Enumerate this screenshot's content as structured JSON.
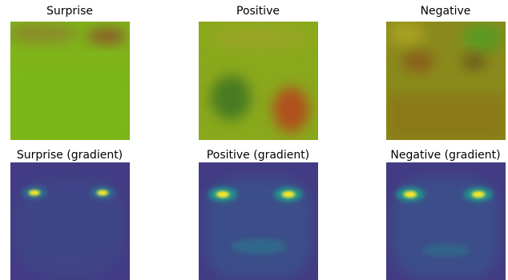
{
  "panels": [
    {
      "title": "Surprise"
    },
    {
      "title": "Positive"
    },
    {
      "title": "Negative"
    },
    {
      "title": "Surprise (gradient)"
    },
    {
      "title": "Positive (gradient)"
    },
    {
      "title": "Negative (gradient)"
    }
  ]
}
